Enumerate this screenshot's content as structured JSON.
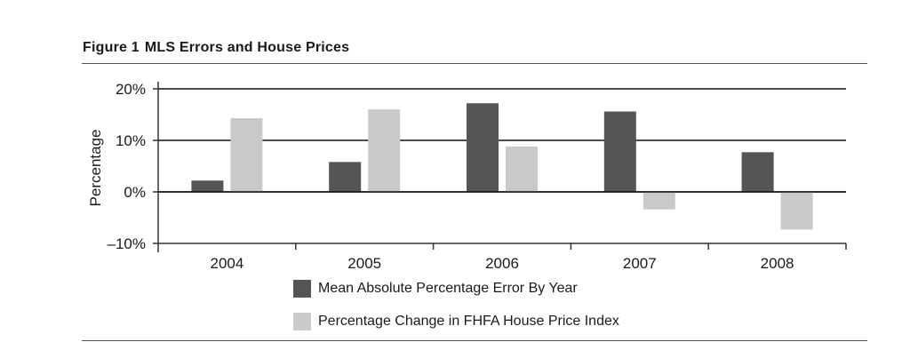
{
  "figure": {
    "number": "Figure 1",
    "title": "MLS Errors and House Prices"
  },
  "chart_data": {
    "type": "bar",
    "categories": [
      "2004",
      "2005",
      "2006",
      "2007",
      "2008"
    ],
    "series": [
      {
        "name": "Mean Absolute Percentage Error By Year",
        "values": [
          2.2,
          5.8,
          17.2,
          15.6,
          7.7
        ],
        "color": "#555558"
      },
      {
        "name": "Percentage Change in FHFA House Price Index",
        "values": [
          14.3,
          16.0,
          8.8,
          -3.4,
          -7.3
        ],
        "color": "#c8c9cb"
      }
    ],
    "ylabel": "Percentage",
    "xlabel": "",
    "ylim": [
      -10,
      20
    ],
    "yticks": [
      {
        "value": 20,
        "label": "20%"
      },
      {
        "value": 10,
        "label": "10%"
      },
      {
        "value": 0,
        "label": "0%"
      },
      {
        "value": -10,
        "label": "–10%"
      }
    ],
    "grid": true,
    "legend_position": "bottom"
  }
}
